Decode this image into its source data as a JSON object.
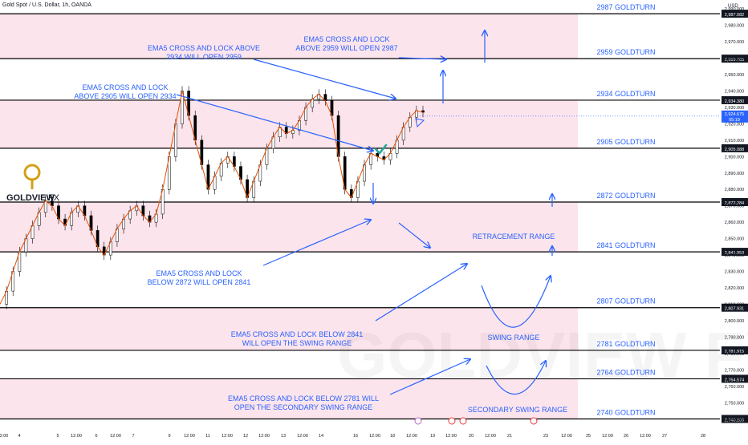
{
  "header": {
    "symbol_line": "Gold Spot / U.S. Dollar, 1h, OANDA",
    "currency": "USD"
  },
  "logo": {
    "brand": "GOLDVIEW",
    "suffix": "FX",
    "watermark": "GOLDVIEW FX"
  },
  "colors": {
    "zone": "#fce4ec",
    "line": "#000000",
    "blue": "#2962ff",
    "candle": "#000000",
    "ema": "#e65100",
    "logo_gold": "#d4a017",
    "check": "#26a69a"
  },
  "chart_data": {
    "type": "line",
    "title": "Gold Spot / U.S. Dollar, 1h, OANDA",
    "ylim": [
      2734,
      2993
    ],
    "price_axis_ticks": [
      2740,
      2750,
      2760,
      2770,
      2780,
      2790,
      2800,
      2810,
      2820,
      2830,
      2840,
      2850,
      2860,
      2870,
      2880,
      2890,
      2900,
      2910,
      2920,
      2930,
      2940,
      2950,
      2960,
      2970,
      2980,
      2990
    ],
    "price_axis_labels": [
      "2,740.000",
      "2,750.000",
      "2,760.000",
      "2,770.000",
      "2,780.000",
      "2,790.000",
      "2,800.000",
      "2,810.000",
      "2,820.000",
      "2,830.000",
      "2,840.000",
      "2,850.000",
      "2,860.000",
      "2,870.000",
      "2,880.000",
      "2,890.000",
      "2,900.000",
      "2,910.000",
      "2,920.000",
      "2,930.000",
      "2,940.000",
      "2,950.000",
      "2,960.000",
      "2,970.000",
      "2,980.000",
      "2,990.000"
    ],
    "time_axis_labels": [
      "2:00",
      "4",
      "5",
      "12:00",
      "6",
      "12:00",
      "7",
      "9",
      "12:00",
      "11",
      "12:00",
      "12",
      "12:00",
      "13",
      "12:00",
      "14",
      "16",
      "12:00",
      "18",
      "12:00",
      "19",
      "12:00",
      "20",
      "12:00",
      "21",
      "23",
      "12:00",
      "25",
      "12:00",
      "26",
      "12:00",
      "27",
      "28"
    ],
    "levels": [
      {
        "price": 2987.082,
        "name": "2987 GOLDTURN",
        "tag": "2,987.082"
      },
      {
        "price": 2959.705,
        "name": "2959 GOLDTURN",
        "tag": "2,959.705"
      },
      {
        "price": 2934.38,
        "name": "2934 GOLDTURN",
        "tag": "2,934.380"
      },
      {
        "price": 2905.088,
        "name": "2905 GOLDTURN",
        "tag": "2,905.088"
      },
      {
        "price": 2872.284,
        "name": "2872 GOLDTURN",
        "tag": "2,872.284"
      },
      {
        "price": 2841.953,
        "name": "2841 GOLDTURN",
        "tag": "2,841.953"
      },
      {
        "price": 2807.931,
        "name": "2807 GOLDTURN",
        "tag": "2,807.931"
      },
      {
        "price": 2781.915,
        "name": "2781 GOLDTURN",
        "tag": "2,781.915"
      },
      {
        "price": 2764.574,
        "name": "2764 GOLDTURN",
        "tag": "2,764.574"
      },
      {
        "price": 2740.109,
        "name": "2740 GOLDTURN",
        "tag": "2,740.109"
      }
    ],
    "zones": [
      [
        2959.705,
        2987.082
      ],
      [
        2905.088,
        2934.38
      ],
      [
        2841.953,
        2872.284
      ],
      [
        2781.915,
        2807.931
      ],
      [
        2740.109,
        2764.574
      ]
    ],
    "current_price": {
      "value": 2924.675,
      "label": "2,924.675",
      "countdown": "05:19"
    },
    "series": [
      {
        "values": [
          2810,
          2818,
          2830,
          2842,
          2850,
          2858,
          2866,
          2873,
          2870,
          2862,
          2858,
          2866,
          2870,
          2864,
          2855,
          2845,
          2840,
          2848,
          2856,
          2862,
          2867,
          2870,
          2864,
          2860,
          2865,
          2880,
          2900,
          2920,
          2940,
          2925,
          2910,
          2895,
          2880,
          2888,
          2896,
          2900,
          2894,
          2886,
          2875,
          2885,
          2895,
          2905,
          2912,
          2918,
          2914,
          2916,
          2922,
          2930,
          2935,
          2938,
          2934,
          2925,
          2900,
          2880,
          2875,
          2885,
          2895,
          2902,
          2900,
          2898,
          2902,
          2910,
          2918,
          2924,
          2928,
          2927
        ]
      }
    ]
  },
  "annotations": [
    {
      "id": "a1",
      "lines": [
        "EMA5 CROSS AND LOCK",
        "ABOVE 2959 WILL OPEN 2987"
      ]
    },
    {
      "id": "a2",
      "lines": [
        "EMA5 CROSS AND LOCK ABOVE",
        "2934 WILL OPEN 2959"
      ]
    },
    {
      "id": "a3",
      "lines": [
        "EMA5 CROSS AND LOCK",
        "ABOVE 2905 WILL OPEN 2934"
      ]
    },
    {
      "id": "a4",
      "lines": [
        "EMA5 CROSS AND LOCK",
        "BELOW 2872 WILL OPEN 2841"
      ]
    },
    {
      "id": "a5",
      "lines": [
        "EMA5 CROSS AND LOCK BELOW 2841",
        "WILL OPEN THE SWING RANGE"
      ]
    },
    {
      "id": "a6",
      "lines": [
        "EMA5 CROSS AND LOCK BELOW 2781 WILL",
        "OPEN THE SECONDARY SWING RANGE"
      ]
    },
    {
      "id": "r1",
      "lines": [
        "RETRACEMENT RANGE"
      ]
    },
    {
      "id": "r2",
      "lines": [
        "SWING RANGE"
      ]
    },
    {
      "id": "r3",
      "lines": [
        "SECONDARY SWING RANGE"
      ]
    }
  ]
}
